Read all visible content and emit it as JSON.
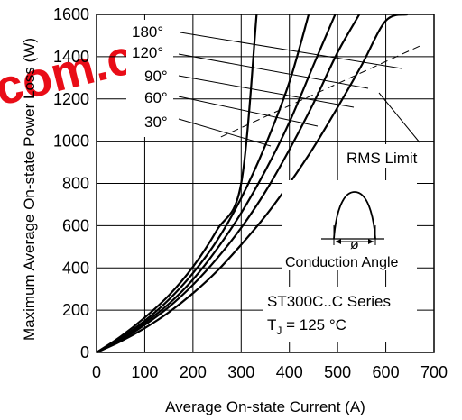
{
  "chart_data": {
    "type": "line",
    "xlabel": "Average On-state Current (A)",
    "ylabel": "Maximum Average On-state Power Loss (W)",
    "xlim": [
      0,
      700
    ],
    "ylim": [
      0,
      1600
    ],
    "xticks": [
      0,
      100,
      200,
      300,
      400,
      500,
      600,
      700
    ],
    "yticks": [
      0,
      200,
      400,
      600,
      800,
      1000,
      1200,
      1400,
      1600
    ],
    "grid": true,
    "series": [
      {
        "name": "30°",
        "points": [
          [
            0,
            0
          ],
          [
            50,
            75
          ],
          [
            100,
            165
          ],
          [
            150,
            270
          ],
          [
            200,
            405
          ],
          [
            250,
            580
          ],
          [
            300,
            800
          ],
          [
            332,
            1600
          ]
        ]
      },
      {
        "name": "60°",
        "points": [
          [
            0,
            0
          ],
          [
            50,
            68
          ],
          [
            100,
            150
          ],
          [
            150,
            250
          ],
          [
            200,
            375
          ],
          [
            250,
            530
          ],
          [
            300,
            730
          ],
          [
            350,
            980
          ],
          [
            400,
            1280
          ],
          [
            440,
            1600
          ]
        ]
      },
      {
        "name": "90°",
        "points": [
          [
            0,
            0
          ],
          [
            50,
            63
          ],
          [
            100,
            140
          ],
          [
            150,
            230
          ],
          [
            200,
            345
          ],
          [
            250,
            490
          ],
          [
            300,
            660
          ],
          [
            350,
            860
          ],
          [
            400,
            1090
          ],
          [
            450,
            1360
          ],
          [
            495,
            1600
          ]
        ]
      },
      {
        "name": "120°",
        "points": [
          [
            0,
            0
          ],
          [
            50,
            58
          ],
          [
            100,
            130
          ],
          [
            150,
            215
          ],
          [
            200,
            320
          ],
          [
            250,
            445
          ],
          [
            300,
            590
          ],
          [
            350,
            760
          ],
          [
            400,
            960
          ],
          [
            450,
            1180
          ],
          [
            500,
            1420
          ],
          [
            545,
            1600
          ]
        ]
      },
      {
        "name": "180°",
        "points": [
          [
            0,
            0
          ],
          [
            50,
            52
          ],
          [
            100,
            115
          ],
          [
            150,
            190
          ],
          [
            200,
            280
          ],
          [
            250,
            385
          ],
          [
            300,
            510
          ],
          [
            350,
            645
          ],
          [
            400,
            800
          ],
          [
            450,
            970
          ],
          [
            500,
            1160
          ],
          [
            550,
            1360
          ],
          [
            600,
            1570
          ],
          [
            645,
            1600
          ]
        ]
      }
    ],
    "rms_limit_points": [
      [
        258,
        1020
      ],
      [
        670,
        1450
      ]
    ],
    "annotations": {
      "angle_labels": [
        "180°",
        "120°",
        "90°",
        "60°",
        "30°"
      ],
      "rms_limit": "RMS Limit",
      "conduction_angle": "Conduction Angle",
      "phi": "ø",
      "series_name": "ST300C..C Series",
      "tj_prefix": "T",
      "tj_sub": "J",
      "tj_value": " = 125 °C"
    }
  },
  "watermark": {
    "text": "com.cn",
    "color": "#e8000b"
  }
}
